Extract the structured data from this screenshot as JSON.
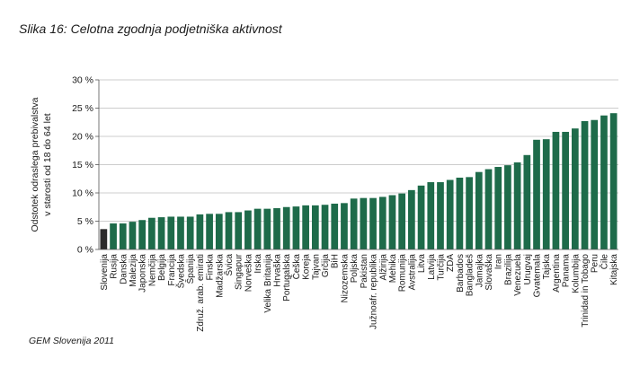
{
  "figure": {
    "title": "Slika 16: Celotna zgodnja podjetniška aktivnost",
    "source": "GEM Slovenija 2011"
  },
  "colors": {
    "bar": "#1e6b4a",
    "highlight": "#2b2b2b",
    "grid": "#bdbdbd",
    "axis": "#555555"
  },
  "chart_data": {
    "type": "bar",
    "title": "",
    "ylabel_lines": [
      "Odstotek odraslega prebivalstva",
      "v starosti od 18 do 64 let"
    ],
    "xlabel": "",
    "ylim": [
      0,
      30
    ],
    "yticks": [
      0,
      5,
      10,
      15,
      20,
      25,
      30
    ],
    "ytick_labels": [
      "0 %",
      "5 %",
      "10 %",
      "15 %",
      "20 %",
      "25 %",
      "30 %"
    ],
    "grid": true,
    "highlight": [
      "Slovenija"
    ],
    "categories": [
      "Slovenija",
      "Rusija",
      "Danska",
      "Malezija",
      "Japonska",
      "Nemčija",
      "Belgija",
      "Francija",
      "Švedska",
      "Španija",
      "Združ. arab. emirati",
      "Finska",
      "Madžarska",
      "Švica",
      "Singapur",
      "Norveška",
      "Irska",
      "Velika Britanija",
      "Hrvaška",
      "Portugalska",
      "Češka",
      "Koreja",
      "Tajvan",
      "Grčija",
      "BiH",
      "Nizozemska",
      "Poljska",
      "Pakistan",
      "Južnoafr. republika",
      "Alžirija",
      "Mehika",
      "Romunija",
      "Avstralija",
      "Litva",
      "Latvija",
      "Turčija",
      "ZDA",
      "Barbados",
      "Bangladeš",
      "Jamajka",
      "Slovaška",
      "Iran",
      "Brazilija",
      "Venezuela",
      "Urugvaj",
      "Gvatemala",
      "Tajska",
      "Argentina",
      "Panama",
      "Kolumbija",
      "Trinidad in Tobago",
      "Peru",
      "Čile",
      "Kitajska"
    ],
    "values": [
      3.6,
      4.6,
      4.6,
      4.9,
      5.2,
      5.6,
      5.7,
      5.8,
      5.8,
      5.8,
      6.2,
      6.3,
      6.3,
      6.6,
      6.6,
      6.9,
      7.2,
      7.2,
      7.3,
      7.5,
      7.6,
      7.8,
      7.8,
      7.9,
      8.1,
      8.2,
      9.0,
      9.1,
      9.1,
      9.3,
      9.6,
      9.9,
      10.5,
      11.3,
      11.9,
      11.9,
      12.3,
      12.7,
      12.8,
      13.7,
      14.2,
      14.6,
      14.9,
      15.4,
      16.7,
      19.4,
      19.5,
      20.8,
      20.8,
      21.4,
      22.7,
      22.9,
      23.7,
      24.1
    ]
  }
}
